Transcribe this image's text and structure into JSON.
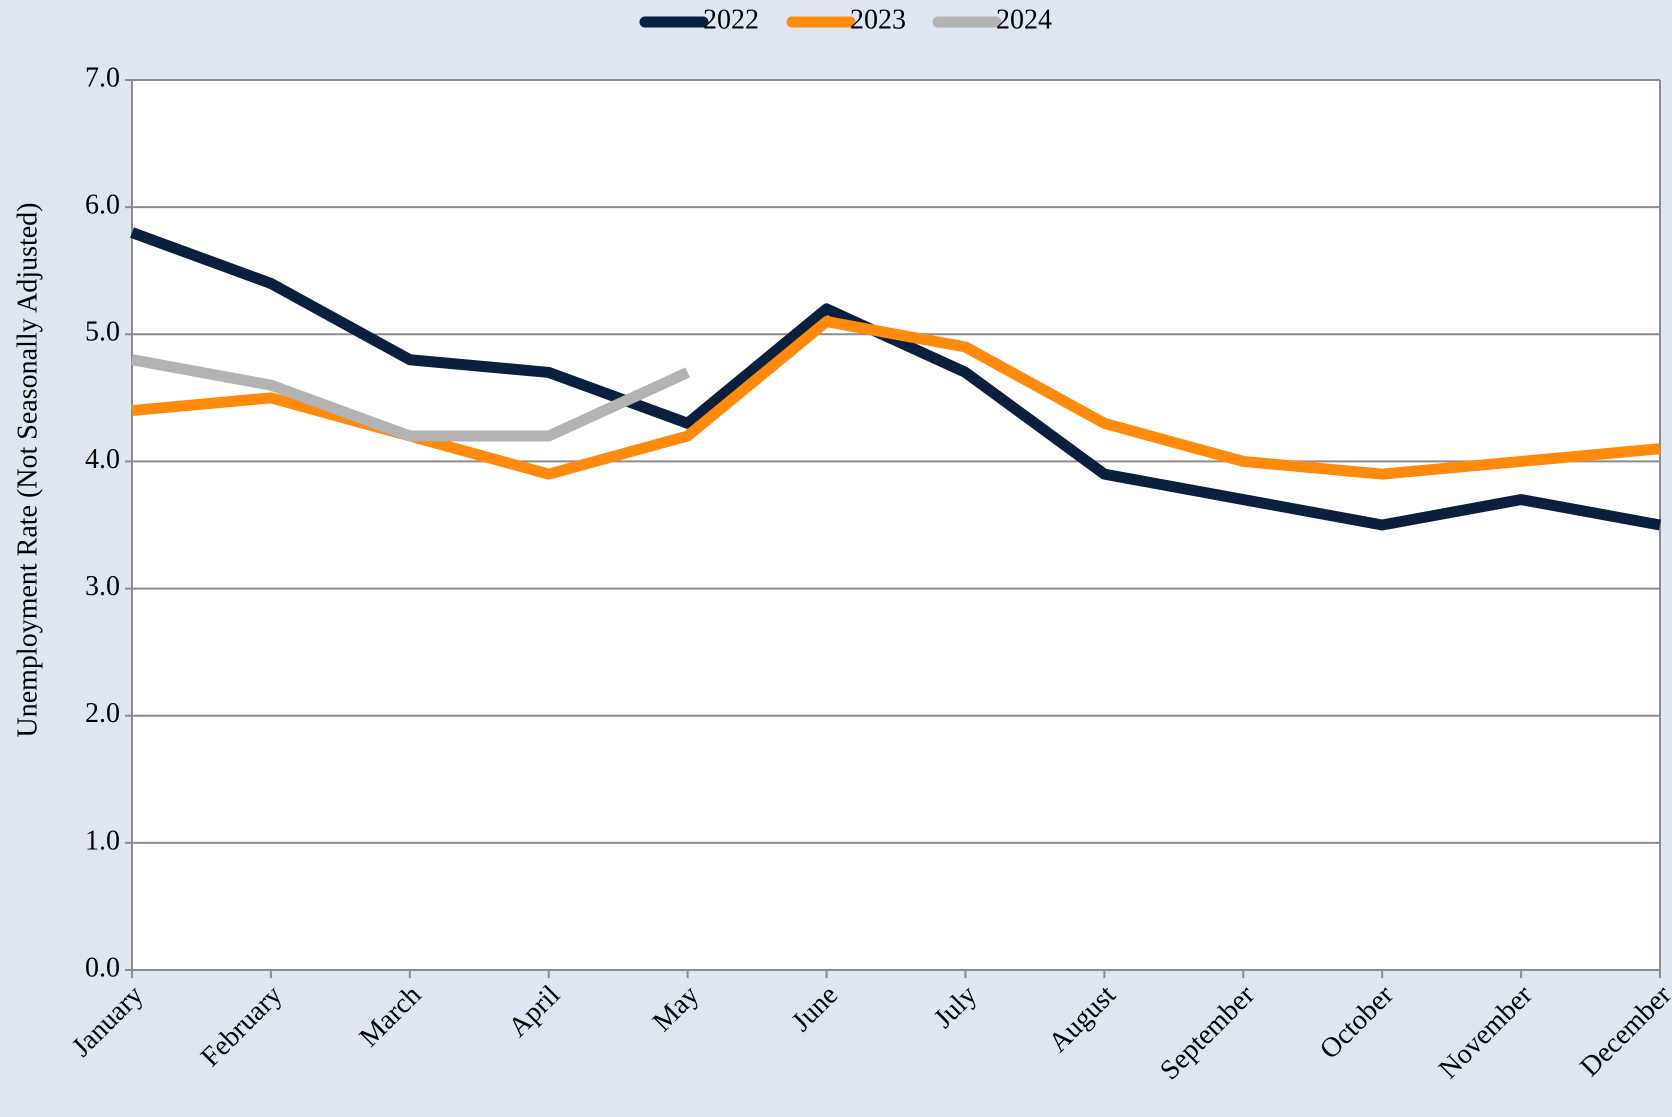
{
  "chart_data": {
    "type": "line",
    "y_label": "Unemployment Rate (Not Seasonally Adjusted)",
    "categories": [
      "January",
      "February",
      "March",
      "April",
      "May",
      "June",
      "July",
      "August",
      "September",
      "October",
      "November",
      "December"
    ],
    "series": [
      {
        "name": "2022",
        "color": "#0b1f3f",
        "values": [
          5.8,
          5.4,
          4.8,
          4.7,
          4.3,
          5.2,
          4.7,
          3.9,
          3.7,
          3.5,
          3.7,
          3.5
        ]
      },
      {
        "name": "2023",
        "color": "#ff8a0c",
        "values": [
          4.4,
          4.5,
          4.2,
          3.9,
          4.2,
          5.1,
          4.9,
          4.3,
          4.0,
          3.9,
          4.0,
          4.1
        ]
      },
      {
        "name": "2024",
        "color": "#b3b3b3",
        "values": [
          4.8,
          4.6,
          4.2,
          4.2,
          4.7,
          null,
          null,
          null,
          null,
          null,
          null,
          null
        ]
      }
    ],
    "ylim": [
      0,
      7
    ],
    "yticks": [
      {
        "value": 0,
        "label": "0.0"
      },
      {
        "value": 1,
        "label": "1.0"
      },
      {
        "value": 2,
        "label": "2.0"
      },
      {
        "value": 3,
        "label": "3.0"
      },
      {
        "value": 4,
        "label": "4.0"
      },
      {
        "value": 5,
        "label": "5.0"
      },
      {
        "value": 6,
        "label": "6.0"
      },
      {
        "value": 7,
        "label": "7.0"
      }
    ],
    "grid": true,
    "legend": "top"
  }
}
